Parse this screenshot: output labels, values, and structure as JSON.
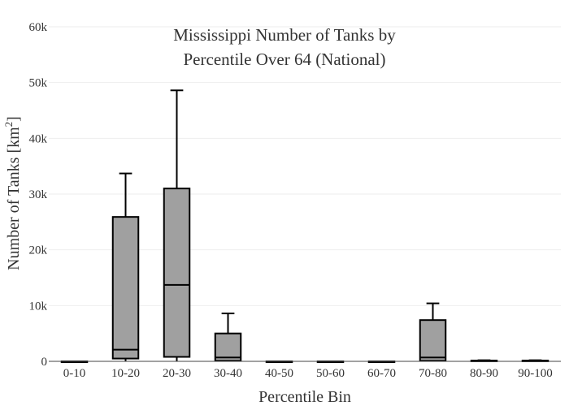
{
  "chart_data": {
    "type": "box",
    "title_lines": [
      "Mississippi Number of Tanks by",
      "Percentile Over 64 (National)"
    ],
    "xlabel": "Percentile Bin",
    "ylabel": "Number of Tanks  [km",
    "ylabel_sup": "2",
    "ylabel_end": "]",
    "ylim": [
      0,
      60000
    ],
    "yticks": [
      0,
      10000,
      20000,
      30000,
      40000,
      50000,
      60000
    ],
    "ytick_labels": [
      "0",
      "10k",
      "20k",
      "30k",
      "40k",
      "50k",
      "60k"
    ],
    "grid": true,
    "box_color": "#a0a0a0",
    "line_color": "#000000",
    "categories": [
      "0-10",
      "10-20",
      "20-30",
      "30-40",
      "40-50",
      "50-60",
      "60-70",
      "70-80",
      "80-90",
      "90-100"
    ],
    "boxes": [
      {
        "min": 0,
        "q1": 0,
        "median": 0,
        "q3": 0,
        "max": 0
      },
      {
        "min": 0,
        "q1": 500,
        "median": 2100,
        "q3": 25900,
        "max": 33700
      },
      {
        "min": 0,
        "q1": 800,
        "median": 13700,
        "q3": 31000,
        "max": 48600
      },
      {
        "min": 0,
        "q1": 100,
        "median": 700,
        "q3": 5000,
        "max": 8600
      },
      {
        "min": 0,
        "q1": 0,
        "median": 0,
        "q3": 0,
        "max": 0
      },
      {
        "min": 0,
        "q1": 0,
        "median": 0,
        "q3": 0,
        "max": 0
      },
      {
        "min": 0,
        "q1": 0,
        "median": 0,
        "q3": 0,
        "max": 0
      },
      {
        "min": 0,
        "q1": 100,
        "median": 700,
        "q3": 7400,
        "max": 10400
      },
      {
        "min": 0,
        "q1": 50,
        "median": 100,
        "q3": 150,
        "max": 200
      },
      {
        "min": 0,
        "q1": 50,
        "median": 100,
        "q3": 150,
        "max": 200
      }
    ]
  }
}
